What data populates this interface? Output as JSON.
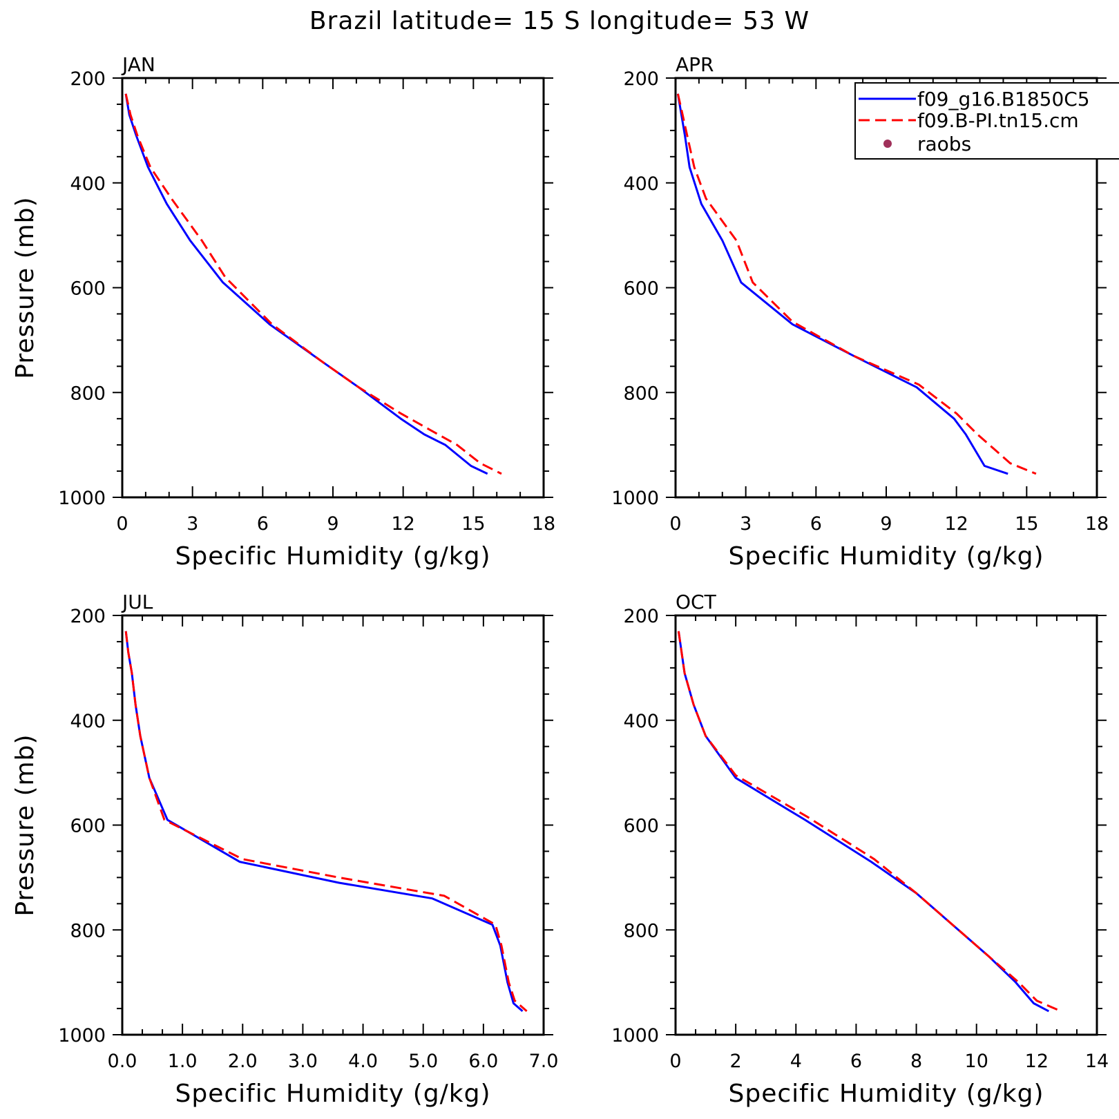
{
  "figure": {
    "title": "Brazil  latitude= 15 S longitude= 53 W"
  },
  "legend": {
    "entries": [
      {
        "label": "f09_g16.B1850C5",
        "color": "#0000ff",
        "style": "solid"
      },
      {
        "label": "f09.B-PI.tn15.cm",
        "color": "#ff0000",
        "style": "dashed"
      },
      {
        "label": "raobs",
        "color": "#a0305a",
        "style": "marker"
      }
    ]
  },
  "chart_data": [
    {
      "type": "line",
      "panel": "JAN",
      "xlabel": "Specific Humidity (g/kg)",
      "ylabel": "Pressure (mb)",
      "xlim": [
        0,
        18
      ],
      "ylim": [
        1000,
        200
      ],
      "x_ticks": [
        0,
        3,
        6,
        9,
        12,
        15,
        18
      ],
      "x_tick_labels": [
        "0",
        "3",
        "6",
        "9",
        "12",
        "15",
        "18"
      ],
      "y_ticks": [
        200,
        400,
        600,
        800,
        1000
      ],
      "y_tick_labels": [
        "200",
        "400",
        "600",
        "800",
        "1000"
      ],
      "series": [
        {
          "name": "f09_g16.B1850C5",
          "color": "#0000ff",
          "style": "solid",
          "points": [
            [
              0.15,
              230
            ],
            [
              0.3,
              270
            ],
            [
              0.6,
              310
            ],
            [
              1.1,
              370
            ],
            [
              1.9,
              440
            ],
            [
              2.9,
              510
            ],
            [
              4.3,
              590
            ],
            [
              6.3,
              670
            ],
            [
              8.5,
              740
            ],
            [
              10.1,
              790
            ],
            [
              11.9,
              850
            ],
            [
              12.9,
              880
            ],
            [
              13.8,
              900
            ],
            [
              14.9,
              940
            ],
            [
              15.6,
              955
            ]
          ]
        },
        {
          "name": "f09.B-PI.tn15.cm",
          "color": "#ff0000",
          "style": "dashed",
          "points": [
            [
              0.15,
              230
            ],
            [
              0.35,
              270
            ],
            [
              0.65,
              310
            ],
            [
              1.2,
              370
            ],
            [
              2.1,
              430
            ],
            [
              3.4,
              510
            ],
            [
              4.4,
              580
            ],
            [
              6.4,
              670
            ],
            [
              8.5,
              740
            ],
            [
              10.1,
              790
            ],
            [
              11.9,
              840
            ],
            [
              13.1,
              870
            ],
            [
              14.3,
              900
            ],
            [
              15.3,
              935
            ],
            [
              16.2,
              955
            ]
          ]
        }
      ]
    },
    {
      "type": "line",
      "panel": "APR",
      "xlabel": "Specific Humidity (g/kg)",
      "ylabel": "",
      "xlim": [
        0,
        18
      ],
      "ylim": [
        1000,
        200
      ],
      "x_ticks": [
        0,
        3,
        6,
        9,
        12,
        15,
        18
      ],
      "x_tick_labels": [
        "0",
        "3",
        "6",
        "9",
        "12",
        "15",
        "18"
      ],
      "y_ticks": [
        200,
        400,
        600,
        800,
        1000
      ],
      "y_tick_labels": [
        "200",
        "400",
        "600",
        "800",
        "1000"
      ],
      "series": [
        {
          "name": "f09_g16.B1850C5",
          "color": "#0000ff",
          "style": "solid",
          "points": [
            [
              0.1,
              230
            ],
            [
              0.25,
              270
            ],
            [
              0.4,
              310
            ],
            [
              0.6,
              370
            ],
            [
              1.1,
              440
            ],
            [
              2.0,
              510
            ],
            [
              2.8,
              590
            ],
            [
              5.0,
              670
            ],
            [
              7.6,
              730
            ],
            [
              10.3,
              790
            ],
            [
              11.9,
              850
            ],
            [
              12.4,
              880
            ],
            [
              13.2,
              940
            ],
            [
              14.2,
              955
            ]
          ]
        },
        {
          "name": "f09.B-PI.tn15.cm",
          "color": "#ff0000",
          "style": "dashed",
          "points": [
            [
              0.1,
              230
            ],
            [
              0.3,
              270
            ],
            [
              0.5,
              310
            ],
            [
              0.8,
              370
            ],
            [
              1.3,
              430
            ],
            [
              2.6,
              510
            ],
            [
              3.3,
              590
            ],
            [
              5.0,
              665
            ],
            [
              7.6,
              730
            ],
            [
              10.4,
              785
            ],
            [
              12.0,
              840
            ],
            [
              12.9,
              880
            ],
            [
              14.3,
              935
            ],
            [
              15.4,
              955
            ]
          ]
        }
      ]
    },
    {
      "type": "line",
      "panel": "JUL",
      "xlabel": "Specific Humidity (g/kg)",
      "ylabel": "Pressure (mb)",
      "xlim": [
        0,
        7
      ],
      "ylim": [
        1000,
        200
      ],
      "x_ticks": [
        0,
        1,
        2,
        3,
        4,
        5,
        6,
        7
      ],
      "x_tick_labels": [
        "0.0",
        "1.0",
        "2.0",
        "3.0",
        "4.0",
        "5.0",
        "6.0",
        "7.0"
      ],
      "y_ticks": [
        200,
        400,
        600,
        800,
        1000
      ],
      "y_tick_labels": [
        "200",
        "400",
        "600",
        "800",
        "1000"
      ],
      "series": [
        {
          "name": "f09_g16.B1850C5",
          "color": "#0000ff",
          "style": "solid",
          "points": [
            [
              0.06,
              230
            ],
            [
              0.1,
              270
            ],
            [
              0.16,
              310
            ],
            [
              0.22,
              370
            ],
            [
              0.3,
              430
            ],
            [
              0.45,
              510
            ],
            [
              0.75,
              590
            ],
            [
              1.95,
              670
            ],
            [
              3.6,
              710
            ],
            [
              5.15,
              740
            ],
            [
              6.15,
              790
            ],
            [
              6.28,
              830
            ],
            [
              6.4,
              900
            ],
            [
              6.5,
              940
            ],
            [
              6.65,
              955
            ]
          ]
        },
        {
          "name": "f09.B-PI.tn15.cm",
          "color": "#ff0000",
          "style": "dashed",
          "points": [
            [
              0.06,
              230
            ],
            [
              0.1,
              270
            ],
            [
              0.16,
              310
            ],
            [
              0.22,
              370
            ],
            [
              0.3,
              430
            ],
            [
              0.45,
              510
            ],
            [
              0.7,
              590
            ],
            [
              2.0,
              665
            ],
            [
              3.6,
              700
            ],
            [
              5.35,
              735
            ],
            [
              6.2,
              790
            ],
            [
              6.3,
              830
            ],
            [
              6.42,
              900
            ],
            [
              6.52,
              935
            ],
            [
              6.72,
              955
            ]
          ]
        }
      ]
    },
    {
      "type": "line",
      "panel": "OCT",
      "xlabel": "Specific Humidity (g/kg)",
      "ylabel": "",
      "xlim": [
        0,
        14
      ],
      "ylim": [
        1000,
        200
      ],
      "x_ticks": [
        0,
        2,
        4,
        6,
        8,
        10,
        12,
        14
      ],
      "x_tick_labels": [
        "0",
        "2",
        "4",
        "6",
        "8",
        "10",
        "12",
        "14"
      ],
      "y_ticks": [
        200,
        400,
        600,
        800,
        1000
      ],
      "y_tick_labels": [
        "200",
        "400",
        "600",
        "800",
        "1000"
      ],
      "series": [
        {
          "name": "f09_g16.B1850C5",
          "color": "#0000ff",
          "style": "solid",
          "points": [
            [
              0.1,
              230
            ],
            [
              0.3,
              310
            ],
            [
              0.6,
              370
            ],
            [
              1.0,
              430
            ],
            [
              2.0,
              510
            ],
            [
              4.3,
              590
            ],
            [
              6.5,
              670
            ],
            [
              8.0,
              730
            ],
            [
              9.2,
              790
            ],
            [
              10.4,
              850
            ],
            [
              11.3,
              900
            ],
            [
              11.9,
              940
            ],
            [
              12.4,
              955
            ]
          ]
        },
        {
          "name": "f09.B-PI.tn15.cm",
          "color": "#ff0000",
          "style": "dashed",
          "points": [
            [
              0.1,
              230
            ],
            [
              0.3,
              310
            ],
            [
              0.6,
              370
            ],
            [
              1.0,
              430
            ],
            [
              2.0,
              505
            ],
            [
              4.4,
              585
            ],
            [
              6.6,
              665
            ],
            [
              8.0,
              730
            ],
            [
              9.2,
              790
            ],
            [
              10.4,
              850
            ],
            [
              11.4,
              900
            ],
            [
              12.0,
              935
            ],
            [
              12.8,
              955
            ]
          ]
        }
      ]
    }
  ]
}
